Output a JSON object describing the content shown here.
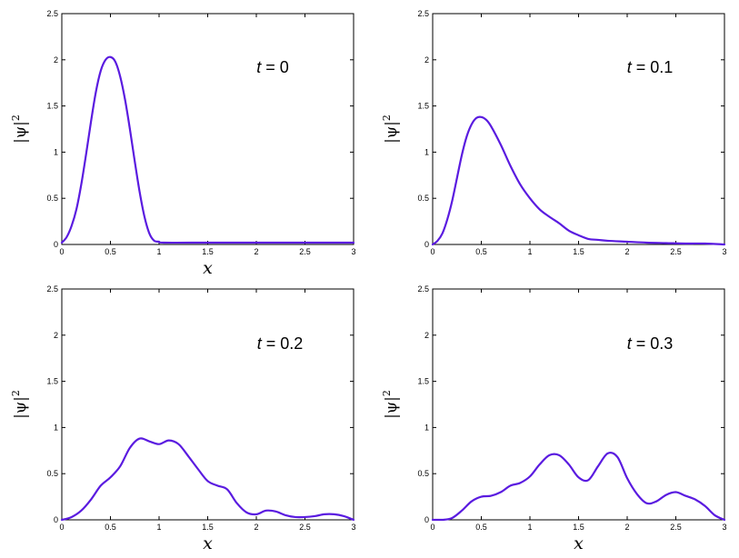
{
  "figure": {
    "colors": {
      "curve": "#5a1be0",
      "axes": "#000000"
    }
  },
  "chart_data": [
    {
      "type": "line",
      "annotation": {
        "var": "t",
        "rest": " = 0"
      },
      "xlabel": "x",
      "ylabel": {
        "base": "|ψ|",
        "sup": "2"
      },
      "xlim": [
        0,
        3
      ],
      "ylim": [
        0,
        2.5
      ],
      "xticks": [
        0,
        0.5,
        1,
        1.5,
        2,
        2.5,
        3
      ],
      "xtick_labels": [
        "0",
        "0.5",
        "1",
        "1.5",
        "2",
        "2.5",
        "3"
      ],
      "yticks": [
        0,
        0.5,
        1,
        1.5,
        2,
        2.5
      ],
      "ytick_labels": [
        "0",
        "0.5",
        "1",
        "1.5",
        "2",
        "2.5"
      ],
      "series": [
        {
          "x": [
            0,
            0.05,
            0.1,
            0.15,
            0.2,
            0.25,
            0.3,
            0.35,
            0.4,
            0.45,
            0.5,
            0.55,
            0.6,
            0.65,
            0.7,
            0.75,
            0.8,
            0.85,
            0.9,
            0.95,
            1.0,
            1.05,
            1.5,
            2.0,
            2.5,
            3.0
          ],
          "y": [
            0.02,
            0.08,
            0.2,
            0.38,
            0.65,
            0.98,
            1.33,
            1.65,
            1.88,
            2.0,
            2.03,
            1.98,
            1.82,
            1.57,
            1.25,
            0.9,
            0.57,
            0.3,
            0.12,
            0.04,
            0.03,
            0.02,
            0.02,
            0.02,
            0.02,
            0.02
          ]
        }
      ]
    },
    {
      "type": "line",
      "annotation": {
        "var": "t",
        "rest": " = 0.1"
      },
      "xlabel": "",
      "ylabel": {
        "base": "|ψ|",
        "sup": "2"
      },
      "xlim": [
        0,
        3
      ],
      "ylim": [
        0,
        2.5
      ],
      "xticks": [
        0,
        0.5,
        1,
        1.5,
        2,
        2.5,
        3
      ],
      "xtick_labels": [
        "0",
        "0.5",
        "1",
        "1.5",
        "2",
        "2.5",
        "3"
      ],
      "yticks": [
        0,
        0.5,
        1,
        1.5,
        2,
        2.5
      ],
      "ytick_labels": [
        "0",
        "0.5",
        "1",
        "1.5",
        "2",
        "2.5"
      ],
      "series": [
        {
          "x": [
            0,
            0.05,
            0.1,
            0.15,
            0.2,
            0.25,
            0.3,
            0.35,
            0.4,
            0.45,
            0.5,
            0.55,
            0.6,
            0.7,
            0.8,
            0.9,
            1.0,
            1.1,
            1.2,
            1.3,
            1.4,
            1.5,
            1.6,
            1.7,
            1.8,
            2.0,
            2.2,
            2.4,
            2.6,
            2.8,
            3.0
          ],
          "y": [
            0.0,
            0.04,
            0.12,
            0.27,
            0.47,
            0.72,
            0.97,
            1.17,
            1.3,
            1.37,
            1.38,
            1.35,
            1.28,
            1.08,
            0.85,
            0.65,
            0.5,
            0.38,
            0.3,
            0.23,
            0.15,
            0.1,
            0.06,
            0.05,
            0.04,
            0.03,
            0.02,
            0.015,
            0.01,
            0.01,
            0.0
          ]
        }
      ]
    },
    {
      "type": "line",
      "annotation": {
        "var": "t",
        "rest": " = 0.2"
      },
      "xlabel": "x",
      "ylabel": {
        "base": "|ψ|",
        "sup": "2"
      },
      "xlim": [
        0,
        3
      ],
      "ylim": [
        0,
        2.5
      ],
      "xticks": [
        0,
        0.5,
        1,
        1.5,
        2,
        2.5,
        3
      ],
      "xtick_labels": [
        "0",
        "0.5",
        "1",
        "1.5",
        "2",
        "2.5",
        "3"
      ],
      "yticks": [
        0,
        0.5,
        1,
        1.5,
        2,
        2.5
      ],
      "ytick_labels": [
        "0",
        "0.5",
        "1",
        "1.5",
        "2",
        "2.5"
      ],
      "series": [
        {
          "x": [
            0,
            0.1,
            0.2,
            0.3,
            0.4,
            0.5,
            0.6,
            0.7,
            0.8,
            0.9,
            1.0,
            1.1,
            1.2,
            1.3,
            1.4,
            1.5,
            1.6,
            1.7,
            1.8,
            1.9,
            2.0,
            2.1,
            2.2,
            2.3,
            2.4,
            2.5,
            2.6,
            2.7,
            2.8,
            2.9,
            3.0
          ],
          "y": [
            0.0,
            0.03,
            0.1,
            0.22,
            0.37,
            0.46,
            0.58,
            0.78,
            0.88,
            0.85,
            0.82,
            0.86,
            0.82,
            0.69,
            0.55,
            0.42,
            0.37,
            0.33,
            0.18,
            0.08,
            0.06,
            0.1,
            0.09,
            0.05,
            0.03,
            0.03,
            0.04,
            0.06,
            0.06,
            0.04,
            0.0
          ]
        }
      ]
    },
    {
      "type": "line",
      "annotation": {
        "var": "t",
        "rest": " = 0.3"
      },
      "xlabel": "x",
      "ylabel": {
        "base": "|ψ|",
        "sup": "2"
      },
      "xlim": [
        0,
        3
      ],
      "ylim": [
        0,
        2.5
      ],
      "xticks": [
        0,
        0.5,
        1,
        1.5,
        2,
        2.5,
        3
      ],
      "xtick_labels": [
        "0",
        "0.5",
        "1",
        "1.5",
        "2",
        "2.5",
        "3"
      ],
      "yticks": [
        0,
        0.5,
        1,
        1.5,
        2,
        2.5
      ],
      "ytick_labels": [
        "0",
        "0.5",
        "1",
        "1.5",
        "2",
        "2.5"
      ],
      "series": [
        {
          "x": [
            0,
            0.1,
            0.2,
            0.3,
            0.4,
            0.5,
            0.6,
            0.7,
            0.8,
            0.9,
            1.0,
            1.1,
            1.2,
            1.3,
            1.4,
            1.5,
            1.6,
            1.7,
            1.8,
            1.9,
            2.0,
            2.1,
            2.2,
            2.3,
            2.4,
            2.5,
            2.6,
            2.7,
            2.8,
            2.9,
            3.0
          ],
          "y": [
            0.0,
            0.0,
            0.02,
            0.1,
            0.2,
            0.25,
            0.26,
            0.3,
            0.37,
            0.4,
            0.47,
            0.6,
            0.7,
            0.7,
            0.6,
            0.46,
            0.43,
            0.58,
            0.72,
            0.68,
            0.45,
            0.28,
            0.18,
            0.2,
            0.27,
            0.3,
            0.26,
            0.22,
            0.15,
            0.05,
            0.0
          ]
        }
      ]
    }
  ]
}
